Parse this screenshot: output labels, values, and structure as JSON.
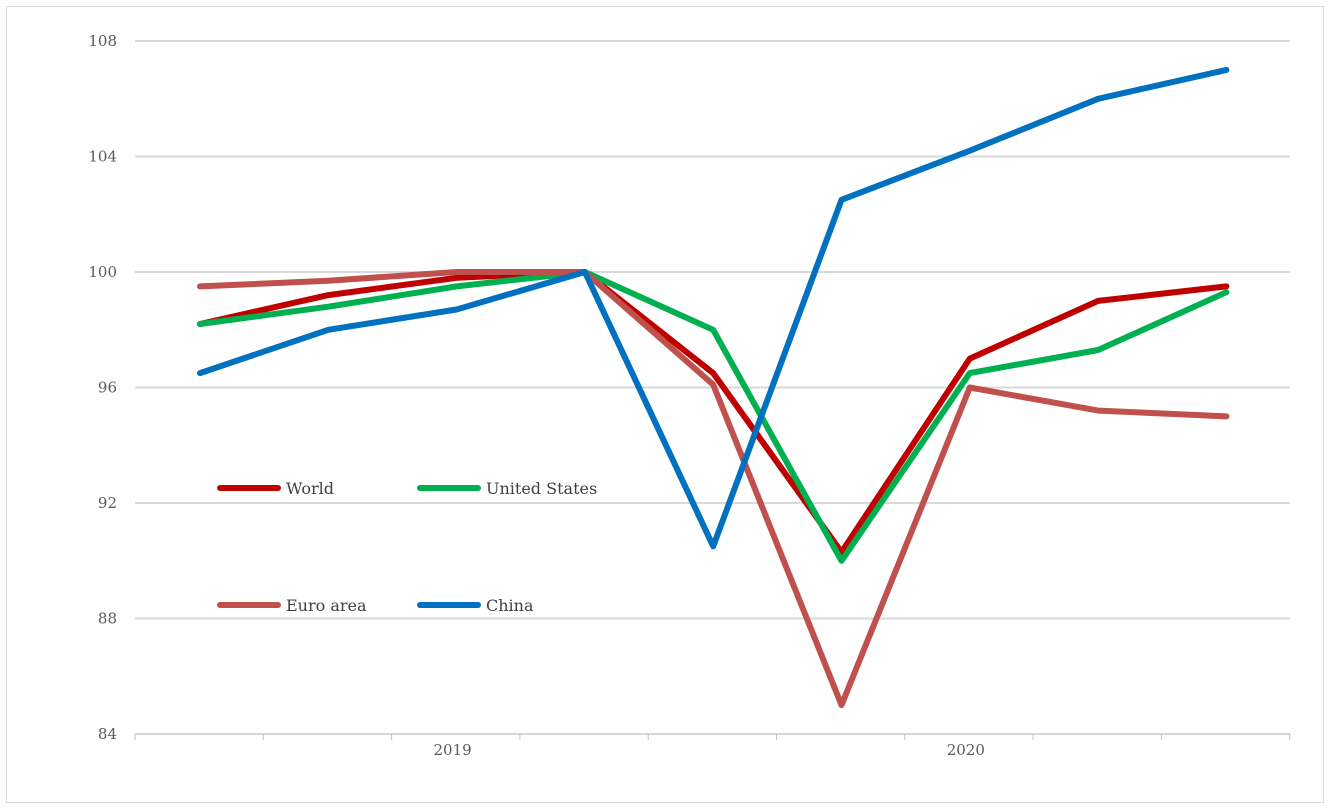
{
  "chart_data": {
    "type": "line",
    "title": "",
    "xlabel": "",
    "ylabel": "",
    "ylim": [
      84,
      108
    ],
    "yticks": [
      84,
      88,
      92,
      96,
      100,
      104,
      108
    ],
    "x_group_labels": [
      "2019",
      "2020"
    ],
    "x_points": 9,
    "grid": true,
    "legend": "inside-left",
    "series": [
      {
        "name": "World",
        "color": "#c00000",
        "values": [
          98.2,
          99.2,
          99.8,
          100.0,
          96.5,
          90.3,
          97.0,
          99.0,
          99.5
        ]
      },
      {
        "name": "United States",
        "color": "#00b050",
        "values": [
          98.2,
          98.8,
          99.5,
          100.0,
          98.0,
          90.0,
          96.5,
          97.3,
          99.3
        ]
      },
      {
        "name": "Euro area",
        "color": "#c0504d",
        "values": [
          99.5,
          99.7,
          100.0,
          100.0,
          96.1,
          85.0,
          96.0,
          95.2,
          95.0
        ]
      },
      {
        "name": "China",
        "color": "#0070c0",
        "values": [
          96.5,
          98.0,
          98.7,
          100.0,
          90.5,
          102.5,
          104.2,
          106.0,
          107.0
        ]
      }
    ]
  }
}
